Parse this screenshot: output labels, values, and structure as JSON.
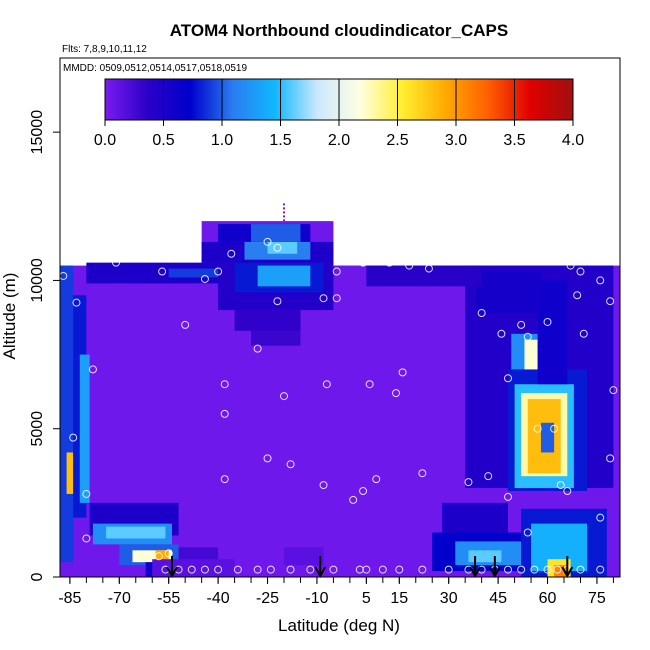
{
  "chart_data": {
    "type": "heatmap",
    "title": "ATOM4 Northbound cloudindicator_CAPS",
    "flights_label": "Flts: 7,8,9,10,11,12",
    "dates_label": "MMDD: 0509,0512,0514,0517,0518,0519",
    "xlabel": "Latitude (deg N)",
    "ylabel": "Altitude (m)",
    "xlim": [
      -88,
      82
    ],
    "ylim": [
      0,
      17500
    ],
    "x_ticks": [
      -85,
      -70,
      -55,
      -40,
      -25,
      -10,
      5,
      15,
      30,
      45,
      60,
      75
    ],
    "x_minor_step": 5,
    "y_ticks": [
      0,
      5000,
      10000,
      15000
    ],
    "colorbar": {
      "min": 0,
      "max": 4,
      "ticks": [
        0.0,
        0.5,
        1.0,
        1.5,
        2.0,
        2.5,
        3.0,
        3.5,
        4.0
      ],
      "tick_labels": [
        "0.0",
        "0.5",
        "1.0",
        "1.5",
        "2.0",
        "2.5",
        "3.0",
        "3.5",
        "4.0"
      ],
      "colors": [
        "#7a1cf0",
        "#2c00c8",
        "#0000cc",
        "#2a7cf0",
        "#10b8ff",
        "#cde8ff",
        "#ffffe0",
        "#ffee30",
        "#ffaa00",
        "#ff6000",
        "#e00000",
        "#a01010"
      ]
    },
    "background_value": 0.05,
    "regions": [
      {
        "lat": [
          -88,
          -84
        ],
        "alt": [
          500,
          10500
        ],
        "value": 0.9
      },
      {
        "lat": [
          -86,
          -84
        ],
        "alt": [
          2800,
          4200
        ],
        "value": 2.8
      },
      {
        "lat": [
          -84,
          -80
        ],
        "alt": [
          2000,
          9500
        ],
        "value": 0.8
      },
      {
        "lat": [
          -82,
          -79
        ],
        "alt": [
          2500,
          7500
        ],
        "value": 1.3
      },
      {
        "lat": [
          -79,
          -52
        ],
        "alt": [
          1400,
          2500
        ],
        "value": 0.5
      },
      {
        "lat": [
          -78,
          -54
        ],
        "alt": [
          1100,
          1800
        ],
        "value": 1.2
      },
      {
        "lat": [
          -74,
          -56
        ],
        "alt": [
          1300,
          1700
        ],
        "value": 1.6
      },
      {
        "lat": [
          -70,
          -52
        ],
        "alt": [
          400,
          1100
        ],
        "value": 1.0
      },
      {
        "lat": [
          -66,
          -54
        ],
        "alt": [
          500,
          900
        ],
        "value": 2.2
      },
      {
        "lat": [
          -59,
          -55
        ],
        "alt": [
          500,
          900
        ],
        "value": 2.9
      },
      {
        "lat": [
          -62,
          -52
        ],
        "alt": [
          0,
          500
        ],
        "value": 0.6
      },
      {
        "lat": [
          -52,
          -40
        ],
        "alt": [
          400,
          1000
        ],
        "value": 0.25
      },
      {
        "lat": [
          -80,
          -20
        ],
        "alt": [
          9900,
          10600
        ],
        "value": 0.5
      },
      {
        "lat": [
          -55,
          -28
        ],
        "alt": [
          10100,
          10400
        ],
        "value": 0.9
      },
      {
        "lat": [
          -40,
          -5
        ],
        "alt": [
          9000,
          10600
        ],
        "value": 0.45
      },
      {
        "lat": [
          -35,
          -8
        ],
        "alt": [
          9600,
          10600
        ],
        "value": 0.8
      },
      {
        "lat": [
          -28,
          -12
        ],
        "alt": [
          9800,
          10500
        ],
        "value": 1.3
      },
      {
        "lat": [
          -45,
          -5
        ],
        "alt": [
          10600,
          11300
        ],
        "value": 0.5
      },
      {
        "lat": [
          -32,
          -12
        ],
        "alt": [
          10700,
          11300
        ],
        "value": 1.1
      },
      {
        "lat": [
          -25,
          -16
        ],
        "alt": [
          10900,
          11300
        ],
        "value": 1.6
      },
      {
        "lat": [
          -40,
          -12
        ],
        "alt": [
          11300,
          11900
        ],
        "value": 0.6
      },
      {
        "lat": [
          -30,
          -15
        ],
        "alt": [
          11300,
          11900
        ],
        "value": 1.0
      },
      {
        "lat": [
          -35,
          -15
        ],
        "alt": [
          8300,
          9000
        ],
        "value": 0.35
      },
      {
        "lat": [
          -30,
          -15
        ],
        "alt": [
          7800,
          8300
        ],
        "value": 0.3
      },
      {
        "lat": [
          -60,
          -35
        ],
        "alt": [
          0,
          600
        ],
        "value": 0.15
      },
      {
        "lat": [
          -20,
          -8
        ],
        "alt": [
          400,
          1000
        ],
        "value": 0.15
      },
      {
        "lat": [
          28,
          48
        ],
        "alt": [
          1500,
          2500
        ],
        "value": 0.5
      },
      {
        "lat": [
          25,
          55
        ],
        "alt": [
          200,
          1500
        ],
        "value": 0.7
      },
      {
        "lat": [
          32,
          52
        ],
        "alt": [
          400,
          1200
        ],
        "value": 1.2
      },
      {
        "lat": [
          36,
          46
        ],
        "alt": [
          500,
          900
        ],
        "value": 1.6
      },
      {
        "lat": [
          52,
          78
        ],
        "alt": [
          0,
          2300
        ],
        "value": 0.8
      },
      {
        "lat": [
          55,
          72
        ],
        "alt": [
          200,
          1800
        ],
        "value": 1.4
      },
      {
        "lat": [
          60,
          67
        ],
        "alt": [
          0,
          600
        ],
        "value": 2.6
      },
      {
        "lat": [
          62,
          66
        ],
        "alt": [
          0,
          400
        ],
        "value": 3.1
      },
      {
        "lat": [
          35,
          80
        ],
        "alt": [
          3000,
          10500
        ],
        "value": 0.45
      },
      {
        "lat": [
          48,
          72
        ],
        "alt": [
          2900,
          7000
        ],
        "value": 0.8
      },
      {
        "lat": [
          50,
          68
        ],
        "alt": [
          3000,
          6500
        ],
        "value": 1.5
      },
      {
        "lat": [
          52,
          66
        ],
        "alt": [
          3400,
          6200
        ],
        "value": 2.3
      },
      {
        "lat": [
          54,
          64
        ],
        "alt": [
          3500,
          6000
        ],
        "value": 2.8
      },
      {
        "lat": [
          58,
          62
        ],
        "alt": [
          4200,
          5200
        ],
        "value": 1.0
      },
      {
        "lat": [
          49,
          57
        ],
        "alt": [
          7000,
          8200
        ],
        "value": 1.2
      },
      {
        "lat": [
          53,
          57
        ],
        "alt": [
          7000,
          8000
        ],
        "value": 2.2
      },
      {
        "lat": [
          57,
          66
        ],
        "alt": [
          6500,
          10000
        ],
        "value": 0.6
      },
      {
        "lat": [
          38,
          58
        ],
        "alt": [
          8900,
          10300
        ],
        "value": 0.55
      },
      {
        "lat": [
          5,
          40
        ],
        "alt": [
          9800,
          10500
        ],
        "value": 0.4
      }
    ],
    "sample_points": [
      [
        -87,
        10150
      ],
      [
        -83,
        9250
      ],
      [
        -84,
        4700
      ],
      [
        -78,
        7000
      ],
      [
        -80,
        2800
      ],
      [
        -80,
        1300
      ],
      [
        -71,
        10600
      ],
      [
        -57,
        10300
      ],
      [
        -50,
        8500
      ],
      [
        -44,
        10050
      ],
      [
        -40,
        10300
      ],
      [
        -36,
        10900
      ],
      [
        -38,
        5500
      ],
      [
        -38,
        3300
      ],
      [
        -38,
        6500
      ],
      [
        -28,
        7700
      ],
      [
        -22,
        9300
      ],
      [
        -25,
        4000
      ],
      [
        -18,
        3800
      ],
      [
        -20,
        6100
      ],
      [
        -8,
        9400
      ],
      [
        -7,
        6500
      ],
      [
        -8,
        3100
      ],
      [
        -4,
        9400
      ],
      [
        1,
        2600
      ],
      [
        4,
        10600
      ],
      [
        4,
        2900
      ],
      [
        6,
        6500
      ],
      [
        8,
        3300
      ],
      [
        12,
        10600
      ],
      [
        14,
        6200
      ],
      [
        16,
        6900
      ],
      [
        18,
        10500
      ],
      [
        22,
        3500
      ],
      [
        24,
        10400
      ],
      [
        36,
        3200
      ],
      [
        42,
        3400
      ],
      [
        40,
        8900
      ],
      [
        42,
        11100
      ],
      [
        47,
        10700
      ],
      [
        48,
        6700
      ],
      [
        46,
        8200
      ],
      [
        48,
        2700
      ],
      [
        52,
        8500
      ],
      [
        54,
        8100
      ],
      [
        54,
        1500
      ],
      [
        57,
        5000
      ],
      [
        60,
        8600
      ],
      [
        62,
        5000
      ],
      [
        64,
        3100
      ],
      [
        66,
        2900
      ],
      [
        67,
        10500
      ],
      [
        70,
        10300
      ],
      [
        71,
        8200
      ],
      [
        69,
        9500
      ],
      [
        72,
        10700
      ],
      [
        76,
        10000
      ],
      [
        76,
        2000
      ],
      [
        79,
        9300
      ],
      [
        79,
        4000
      ],
      [
        80,
        6300
      ],
      [
        -25,
        11300
      ],
      [
        -22,
        11100
      ],
      [
        36,
        11200
      ],
      [
        52,
        10900
      ],
      [
        -4,
        10300
      ],
      [
        -58,
        700
      ],
      [
        -55,
        800
      ],
      [
        -56,
        250
      ],
      [
        -52,
        250
      ],
      [
        -48,
        250
      ],
      [
        -44,
        250
      ],
      [
        -40,
        250
      ],
      [
        -34,
        250
      ],
      [
        -28,
        250
      ],
      [
        -24,
        250
      ],
      [
        -18,
        250
      ],
      [
        -12,
        250
      ],
      [
        -5,
        250
      ],
      [
        3,
        250
      ],
      [
        5,
        250
      ],
      [
        10,
        250
      ],
      [
        15,
        250
      ],
      [
        22,
        250
      ],
      [
        30,
        250
      ],
      [
        36,
        250
      ],
      [
        40,
        250
      ],
      [
        44,
        250
      ],
      [
        48,
        250
      ],
      [
        52,
        250
      ],
      [
        56,
        250
      ],
      [
        60,
        250
      ],
      [
        63,
        250
      ],
      [
        66,
        250
      ],
      [
        70,
        250
      ],
      [
        76,
        250
      ]
    ],
    "arrows": [
      -54,
      -9,
      38,
      44,
      66
    ],
    "marker": {
      "lat": -20,
      "alt": [
        12000,
        12600
      ]
    }
  }
}
